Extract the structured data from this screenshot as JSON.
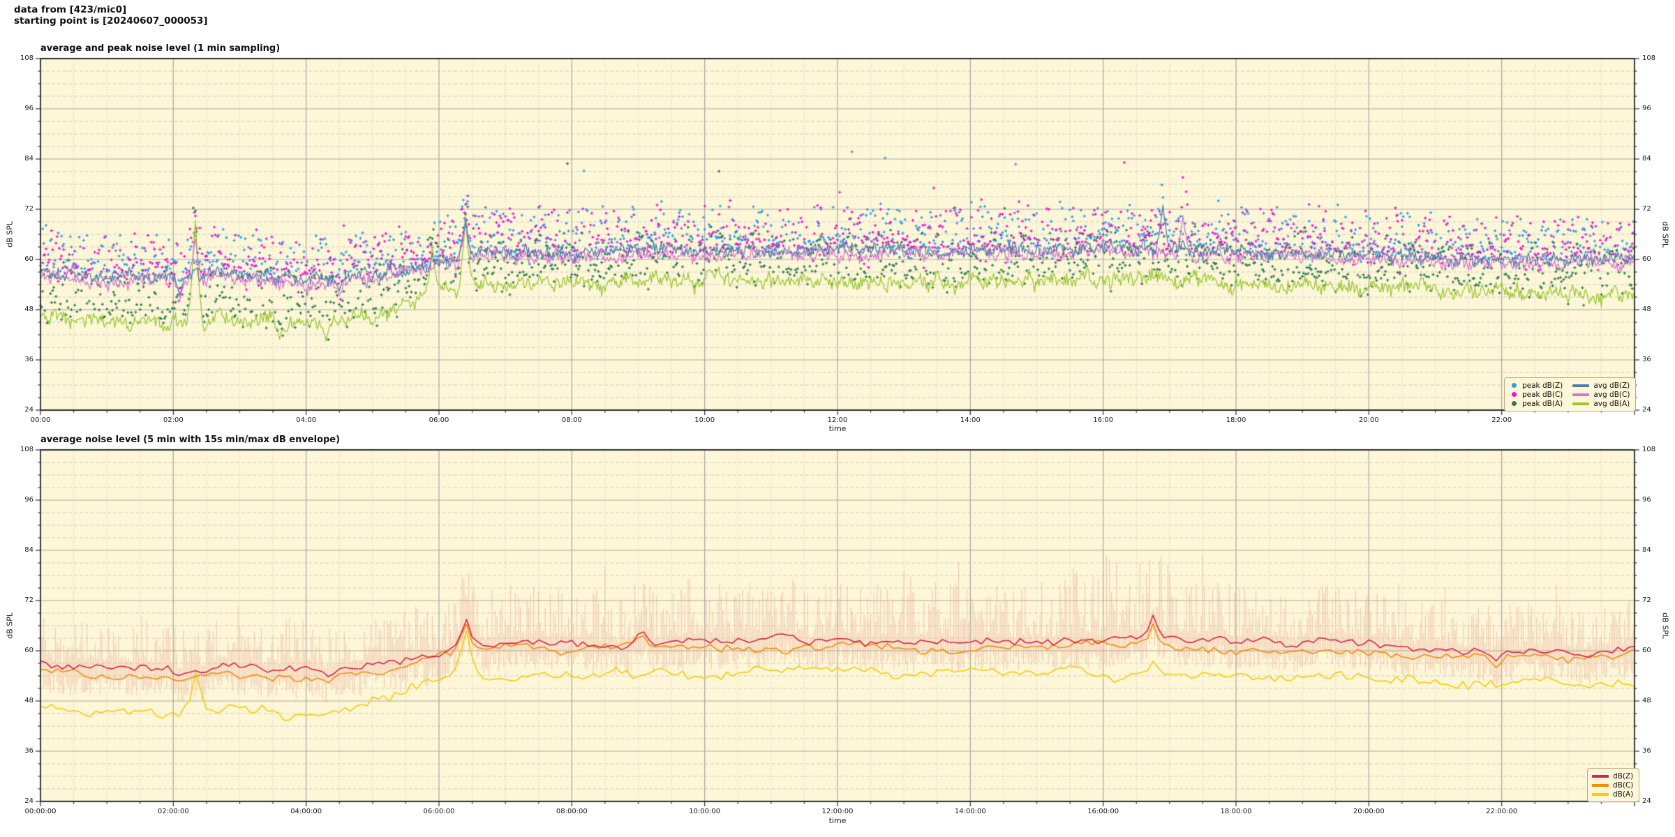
{
  "header": {
    "line1": "data from [423/mic0]",
    "line2": "starting point is [20240607_000053]"
  },
  "seed": 1337,
  "style": {
    "plot_bg": "#fdf6d7",
    "grid_major": "#a8a8a8",
    "grid_minor": "#cbcbcb",
    "spine": "#2b2b2b",
    "envelope": "rgba(231,152,136,0.45)"
  },
  "chart_data": [
    {
      "type": "line+scatter",
      "title": "average and peak noise level (1 min sampling)",
      "xlabel": "time",
      "ylabel": "dB SPL",
      "ylabel_right": "dB SPL",
      "ylim": [
        24,
        108
      ],
      "yticks": [
        108,
        96,
        84,
        72,
        60,
        48,
        36,
        24
      ],
      "y_minor_step": 3,
      "xlim_hours": [
        0,
        24
      ],
      "xtick_hours": [
        0,
        2,
        4,
        6,
        8,
        10,
        12,
        14,
        16,
        18,
        20,
        22
      ],
      "xtick_labels": [
        "00:00",
        "02:00",
        "04:00",
        "06:00",
        "08:00",
        "10:00",
        "12:00",
        "14:00",
        "16:00",
        "18:00",
        "20:00",
        "22:00"
      ],
      "x_minor_minutes": 30,
      "grid": true,
      "legend_position": "lower right",
      "legend": [
        {
          "label": "peak dB(Z)",
          "marker": "dot",
          "color": "#2f9ae8"
        },
        {
          "label": "peak dB(C)",
          "marker": "dot",
          "color": "#f011d0"
        },
        {
          "label": "peak dB(A)",
          "marker": "dot",
          "color": "#2e7d4f"
        },
        {
          "label": "avg dB(Z)",
          "marker": "line",
          "color": "#4d7fae"
        },
        {
          "label": "avg dB(C)",
          "marker": "line",
          "color": "#d678d2"
        },
        {
          "label": "avg dB(A)",
          "marker": "line",
          "color": "#99c832"
        }
      ],
      "series": [
        {
          "name": "avg dB(Z)",
          "color": "#4d7fae",
          "width": 1.3,
          "noise": 2.0,
          "smooth": 0.72,
          "floor": 50,
          "anchors_per_hour": [
            57.5,
            55.5,
            56.0,
            56.5,
            55.0,
            56.5,
            59.5,
            62.0,
            62.0,
            62.5,
            62.5,
            62.5,
            62.5,
            62.5,
            62.5,
            62.5,
            63.0,
            62.5,
            62.0,
            61.5,
            61.0,
            60.5,
            60.0,
            60.0,
            60.5
          ],
          "events": [
            [
              2.1,
              51.5
            ],
            [
              4.5,
              52.5
            ],
            [
              6.4,
              69.5
            ],
            [
              16.9,
              73.0
            ]
          ]
        },
        {
          "name": "avg dB(C)",
          "color": "#d678d2",
          "width": 1.3,
          "noise": 2.2,
          "smooth": 0.72,
          "floor": 48,
          "anchors_per_hour": [
            56.5,
            54.5,
            55.0,
            55.5,
            54.0,
            55.5,
            58.5,
            61.0,
            61.0,
            61.3,
            61.3,
            61.3,
            61.3,
            61.3,
            61.3,
            61.4,
            61.8,
            61.5,
            61.0,
            60.5,
            60.0,
            59.5,
            59.0,
            59.0,
            59.5
          ],
          "events": [
            [
              2.1,
              50.5
            ],
            [
              2.33,
              65.5
            ],
            [
              4.5,
              51.5
            ],
            [
              6.4,
              69.0
            ],
            [
              17.2,
              70.5
            ]
          ]
        },
        {
          "name": "avg dB(A)",
          "color": "#99c832",
          "width": 1.3,
          "noise": 2.6,
          "smooth": 0.74,
          "floor": 38,
          "anchors_per_hour": [
            47.0,
            45.0,
            44.5,
            46.0,
            44.0,
            46.5,
            53.0,
            54.0,
            54.0,
            54.5,
            55.0,
            55.0,
            54.5,
            54.5,
            55.0,
            55.0,
            55.0,
            55.0,
            54.5,
            54.0,
            53.5,
            53.0,
            52.0,
            51.5,
            52.0
          ],
          "events": [
            [
              2.33,
              70.5
            ],
            [
              3.6,
              41.0
            ],
            [
              4.3,
              40.5
            ],
            [
              5.9,
              63.0
            ],
            [
              6.4,
              70.5
            ]
          ]
        }
      ],
      "scatter": [
        {
          "name": "peak dB(Z)",
          "color": "#2f9ae8",
          "base": 0,
          "offset": 1.5,
          "spread": 9,
          "outlier_chance": 0.005,
          "outlier_extra": 14,
          "draw_chance": 0.8
        },
        {
          "name": "peak dB(C)",
          "color": "#f011d0",
          "base": 1,
          "offset": 1.5,
          "spread": 10,
          "outlier_chance": 0.005,
          "outlier_extra": 17,
          "draw_chance": 0.8
        },
        {
          "name": "peak dB(A)",
          "color": "#2e7d4f",
          "base": 2,
          "offset": 2.0,
          "spread": 10,
          "outlier_chance": 0.004,
          "outlier_extra": 13,
          "draw_chance": 0.8
        }
      ]
    },
    {
      "type": "line+envelope",
      "title": "average noise level (5 min with 15s min/max dB envelope)",
      "xlabel": "time",
      "ylabel": "dB SPL",
      "ylabel_right": "dB SPL",
      "ylim": [
        24,
        108
      ],
      "yticks": [
        108,
        96,
        84,
        72,
        60,
        48,
        36,
        24
      ],
      "y_minor_step": 3,
      "xlim_hours": [
        0,
        24
      ],
      "xtick_hours": [
        0,
        2,
        4,
        6,
        8,
        10,
        12,
        14,
        16,
        18,
        20,
        22
      ],
      "xtick_labels": [
        "00:00:00",
        "02:00:00",
        "04:00:00",
        "06:00:00",
        "08:00:00",
        "10:00:00",
        "12:00:00",
        "14:00:00",
        "16:00:00",
        "18:00:00",
        "20:00:00",
        "22:00:00"
      ],
      "x_minor_minutes": 30,
      "grid": true,
      "legend_position": "lower right",
      "legend": [
        {
          "label": "dB(Z)",
          "marker": "line",
          "color": "#d22448"
        },
        {
          "label": "dB(C)",
          "marker": "line",
          "color": "#f08c0f"
        },
        {
          "label": "dB(A)",
          "marker": "line",
          "color": "#f3cc0a"
        }
      ],
      "envelope": {
        "around_series": 0,
        "color": "rgba(231,152,136,0.45)",
        "down": 5.5,
        "up_per_hour": [
          10,
          10,
          10,
          10,
          10,
          10,
          12,
          13,
          13,
          13,
          13,
          13,
          13,
          13,
          13,
          14,
          19,
          17,
          13,
          12,
          11,
          11,
          11,
          10,
          10
        ]
      },
      "series": [
        {
          "name": "dB(Z)",
          "color": "#d22448",
          "width": 1.6,
          "noise": 1.3,
          "smooth": 0.8,
          "floor": 50,
          "anchors_per_hour": [
            57.5,
            55.5,
            55.5,
            56.0,
            54.8,
            56.0,
            60.0,
            62.0,
            61.5,
            62.0,
            62.0,
            62.3,
            62.3,
            62.0,
            62.3,
            62.4,
            63.0,
            62.5,
            62.0,
            61.5,
            61.0,
            60.3,
            59.8,
            59.8,
            60.3
          ],
          "events": [
            [
              2.1,
              54.0
            ],
            [
              4.35,
              53.5
            ],
            [
              6.4,
              68.5
            ],
            [
              9.05,
              65.5
            ],
            [
              16.75,
              68.5
            ],
            [
              21.9,
              57.0
            ]
          ]
        },
        {
          "name": "dB(C)",
          "color": "#f08c0f",
          "width": 1.6,
          "noise": 1.3,
          "smooth": 0.8,
          "floor": 49,
          "anchors_per_hour": [
            56.0,
            54.0,
            54.0,
            54.5,
            53.3,
            54.5,
            58.8,
            60.5,
            60.0,
            60.5,
            60.5,
            60.8,
            60.8,
            60.5,
            60.8,
            60.9,
            61.5,
            61.0,
            60.5,
            60.0,
            59.5,
            58.8,
            58.3,
            58.3,
            58.8
          ],
          "events": [
            [
              2.1,
              52.5
            ],
            [
              4.35,
              52.0
            ],
            [
              6.4,
              67.5
            ],
            [
              9.05,
              64.5
            ],
            [
              16.75,
              66.5
            ],
            [
              21.9,
              55.5
            ]
          ]
        },
        {
          "name": "dB(A)",
          "color": "#f3cc0a",
          "width": 1.6,
          "noise": 1.6,
          "smooth": 0.8,
          "floor": 41,
          "anchors_per_hour": [
            47.5,
            45.5,
            45.0,
            46.5,
            44.5,
            46.5,
            53.0,
            54.0,
            53.5,
            54.0,
            54.5,
            54.8,
            54.5,
            54.3,
            54.8,
            55.0,
            54.8,
            54.8,
            54.3,
            53.8,
            53.3,
            52.8,
            51.8,
            51.3,
            51.8
          ],
          "events": [
            [
              2.35,
              56.5
            ],
            [
              3.7,
              42.5
            ],
            [
              6.4,
              66.5
            ],
            [
              16.75,
              57.5
            ]
          ]
        }
      ]
    }
  ]
}
